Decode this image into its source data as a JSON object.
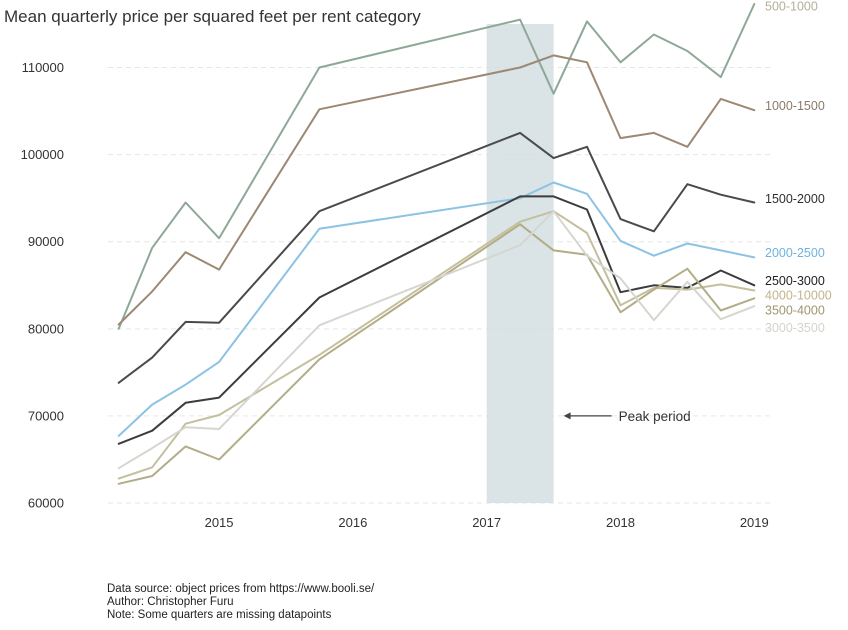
{
  "chart_data": {
    "type": "line",
    "title": "Mean quarterly price per squared feet per rent category",
    "xlabel": "",
    "ylabel": "",
    "xlim": [
      2014.17,
      2019.08
    ],
    "ylim": [
      60000,
      115000
    ],
    "x_ticks": [
      {
        "value": 2015,
        "label": "2015"
      },
      {
        "value": 2016,
        "label": "2016"
      },
      {
        "value": 2017,
        "label": "2017"
      },
      {
        "value": 2018,
        "label": "2018"
      },
      {
        "value": 2019,
        "label": "2019"
      }
    ],
    "y_ticks": [
      {
        "value": 60000,
        "label": "60000"
      },
      {
        "value": 70000,
        "label": "70000"
      },
      {
        "value": 80000,
        "label": "80000"
      },
      {
        "value": 90000,
        "label": "90000"
      },
      {
        "value": 100000,
        "label": "100000"
      },
      {
        "value": 110000,
        "label": "110000"
      }
    ],
    "grid": "horizontal dashed",
    "legend": "labels at right end of each line",
    "highlight": {
      "x_start": 2017.0,
      "x_end": 2017.5,
      "color": "#d3dee2",
      "label": "Peak period",
      "label_x": 2017.62,
      "label_y": 70000
    },
    "x": [
      2014.25,
      2014.5,
      2014.75,
      2015.0,
      2015.75,
      2017.25,
      2017.5,
      2017.75,
      2018.0,
      2018.25,
      2018.5,
      2018.75,
      2019.0
    ],
    "series": [
      {
        "name": "500-1000",
        "color": "#8ea898",
        "text_color": "#b5b09a",
        "label_value": 117000,
        "values": [
          80000,
          89300,
          94500,
          90400,
          110000,
          115500,
          107000,
          115300,
          110600,
          113800,
          111900,
          108900,
          117300
        ]
      },
      {
        "name": "1000-1500",
        "color": "#9c8873",
        "text_color": "#8a7a6a",
        "label_value": 105600,
        "values": [
          80500,
          84300,
          88800,
          86800,
          105200,
          110000,
          111400,
          110600,
          101900,
          102500,
          100900,
          106400,
          105100
        ]
      },
      {
        "name": "1500-2000",
        "color": "#4a4a4a",
        "text_color": "#2e2e2e",
        "label_value": 94900,
        "values": [
          73800,
          76700,
          80800,
          80700,
          93500,
          102500,
          99600,
          100900,
          92600,
          91200,
          96600,
          95400,
          94500
        ]
      },
      {
        "name": "2000-2500",
        "color": "#8cc3e4",
        "text_color": "#6fb3dd",
        "label_value": 88700,
        "values": [
          67700,
          71300,
          73600,
          76200,
          91500,
          95000,
          96800,
          95500,
          90100,
          88400,
          89800,
          89000,
          88200
        ]
      },
      {
        "name": "2500-3000",
        "color": "#3c3c3c",
        "text_color": "#222222",
        "label_value": 85500,
        "values": [
          66800,
          68300,
          71500,
          72100,
          83600,
          95200,
          95200,
          93700,
          84200,
          85000,
          84700,
          86700,
          85000
        ]
      },
      {
        "name": "4000-10000",
        "color": "#c4bf9c",
        "text_color": "#c0b58a",
        "label_value": 83800,
        "values": [
          62800,
          64100,
          69100,
          70100,
          77000,
          92300,
          93500,
          91000,
          82700,
          84700,
          84500,
          85100,
          84400
        ]
      },
      {
        "name": "3500-4000",
        "color": "#b2ad86",
        "text_color": "#9e9670",
        "label_value": 82100,
        "values": [
          62200,
          63100,
          66500,
          65000,
          76500,
          92000,
          89000,
          88500,
          81900,
          84500,
          86900,
          82100,
          83500
        ]
      },
      {
        "name": "3000-3500",
        "color": "#d6d6d0",
        "text_color": "#d4d4cc",
        "label_value": 80100,
        "values": [
          64000,
          66300,
          68700,
          68500,
          80400,
          89600,
          93500,
          88400,
          85800,
          81000,
          85400,
          81100,
          82600
        ]
      }
    ]
  },
  "footnote": {
    "source": "Data source: object prices from https://www.booli.se/",
    "author": "Author: Christopher Furu",
    "note": "Note: Some quarters are missing datapoints"
  }
}
